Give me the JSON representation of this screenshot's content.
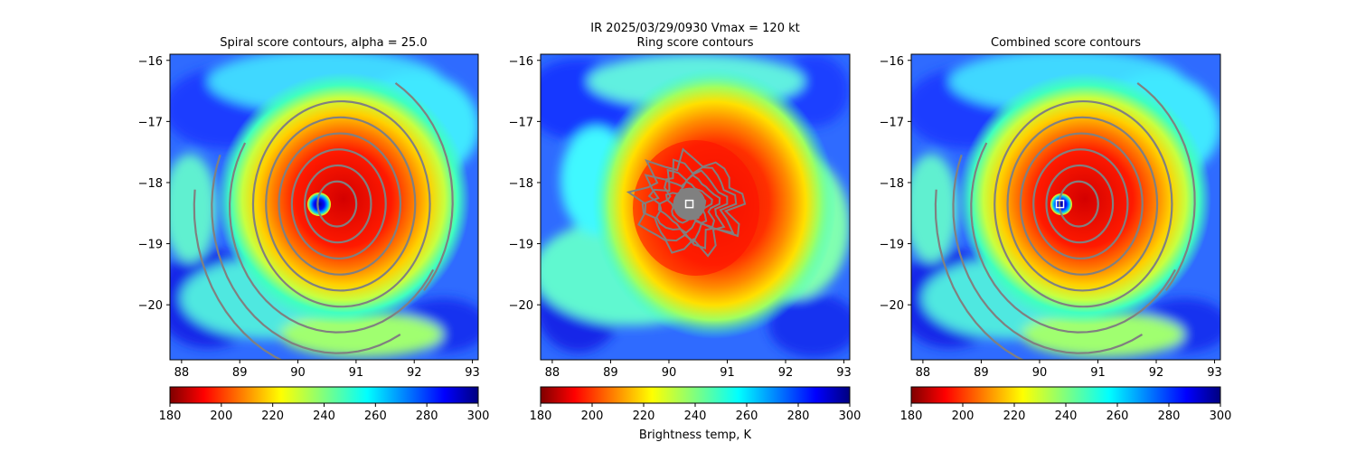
{
  "suptitle": "IR  2025/03/29/0930    Vmax = 120 kt",
  "colorbar_label": "Brightness temp, K",
  "colors": {
    "cloud_top_cold": "#8b0000",
    "eye_warm": "#00007f",
    "contour": "#808080",
    "marker": "#ffffff"
  },
  "chart_data": [
    {
      "type": "heatmap",
      "title": "Spiral score contours, alpha = 25.0",
      "center": [
        90.35,
        -18.35
      ],
      "overlay": "spiral",
      "xlim": [
        87.8,
        93.1
      ],
      "ylim": [
        -20.9,
        -15.9
      ],
      "xticks": [
        88,
        89,
        90,
        91,
        92,
        93
      ],
      "yticks": [
        -16,
        -17,
        -18,
        -19,
        -20
      ],
      "xtick_labels": [
        "88",
        "89",
        "90",
        "91",
        "92",
        "93"
      ],
      "ytick_labels": [
        "−16",
        "−17",
        "−18",
        "−19",
        "−20"
      ],
      "colorbar": {
        "range": [
          180,
          300
        ],
        "ticks": [
          "180",
          "200",
          "220",
          "240",
          "260",
          "280",
          "300"
        ]
      }
    },
    {
      "type": "heatmap",
      "title": "Ring score contours",
      "center": [
        90.35,
        -18.35
      ],
      "overlay": "ring",
      "xlim": [
        87.8,
        93.1
      ],
      "ylim": [
        -20.9,
        -15.9
      ],
      "xticks": [
        88,
        89,
        90,
        91,
        92,
        93
      ],
      "yticks": [
        -16,
        -17,
        -18,
        -19,
        -20
      ],
      "xtick_labels": [
        "88",
        "89",
        "90",
        "91",
        "92",
        "93"
      ],
      "ytick_labels": [
        "−16",
        "−17",
        "−18",
        "−19",
        "−20"
      ],
      "colorbar": {
        "range": [
          180,
          300
        ],
        "ticks": [
          "180",
          "200",
          "220",
          "240",
          "260",
          "280",
          "300"
        ]
      }
    },
    {
      "type": "heatmap",
      "title": "Combined score contours",
      "center": [
        90.35,
        -18.35
      ],
      "overlay": "combined",
      "xlim": [
        87.8,
        93.1
      ],
      "ylim": [
        -20.9,
        -15.9
      ],
      "xticks": [
        88,
        89,
        90,
        91,
        92,
        93
      ],
      "yticks": [
        -16,
        -17,
        -18,
        -19,
        -20
      ],
      "xtick_labels": [
        "88",
        "89",
        "90",
        "91",
        "92",
        "93"
      ],
      "ytick_labels": [
        "−16",
        "−17",
        "−18",
        "−19",
        "−20"
      ],
      "colorbar": {
        "range": [
          180,
          300
        ],
        "ticks": [
          "180",
          "200",
          "220",
          "240",
          "260",
          "280",
          "300"
        ]
      }
    }
  ]
}
